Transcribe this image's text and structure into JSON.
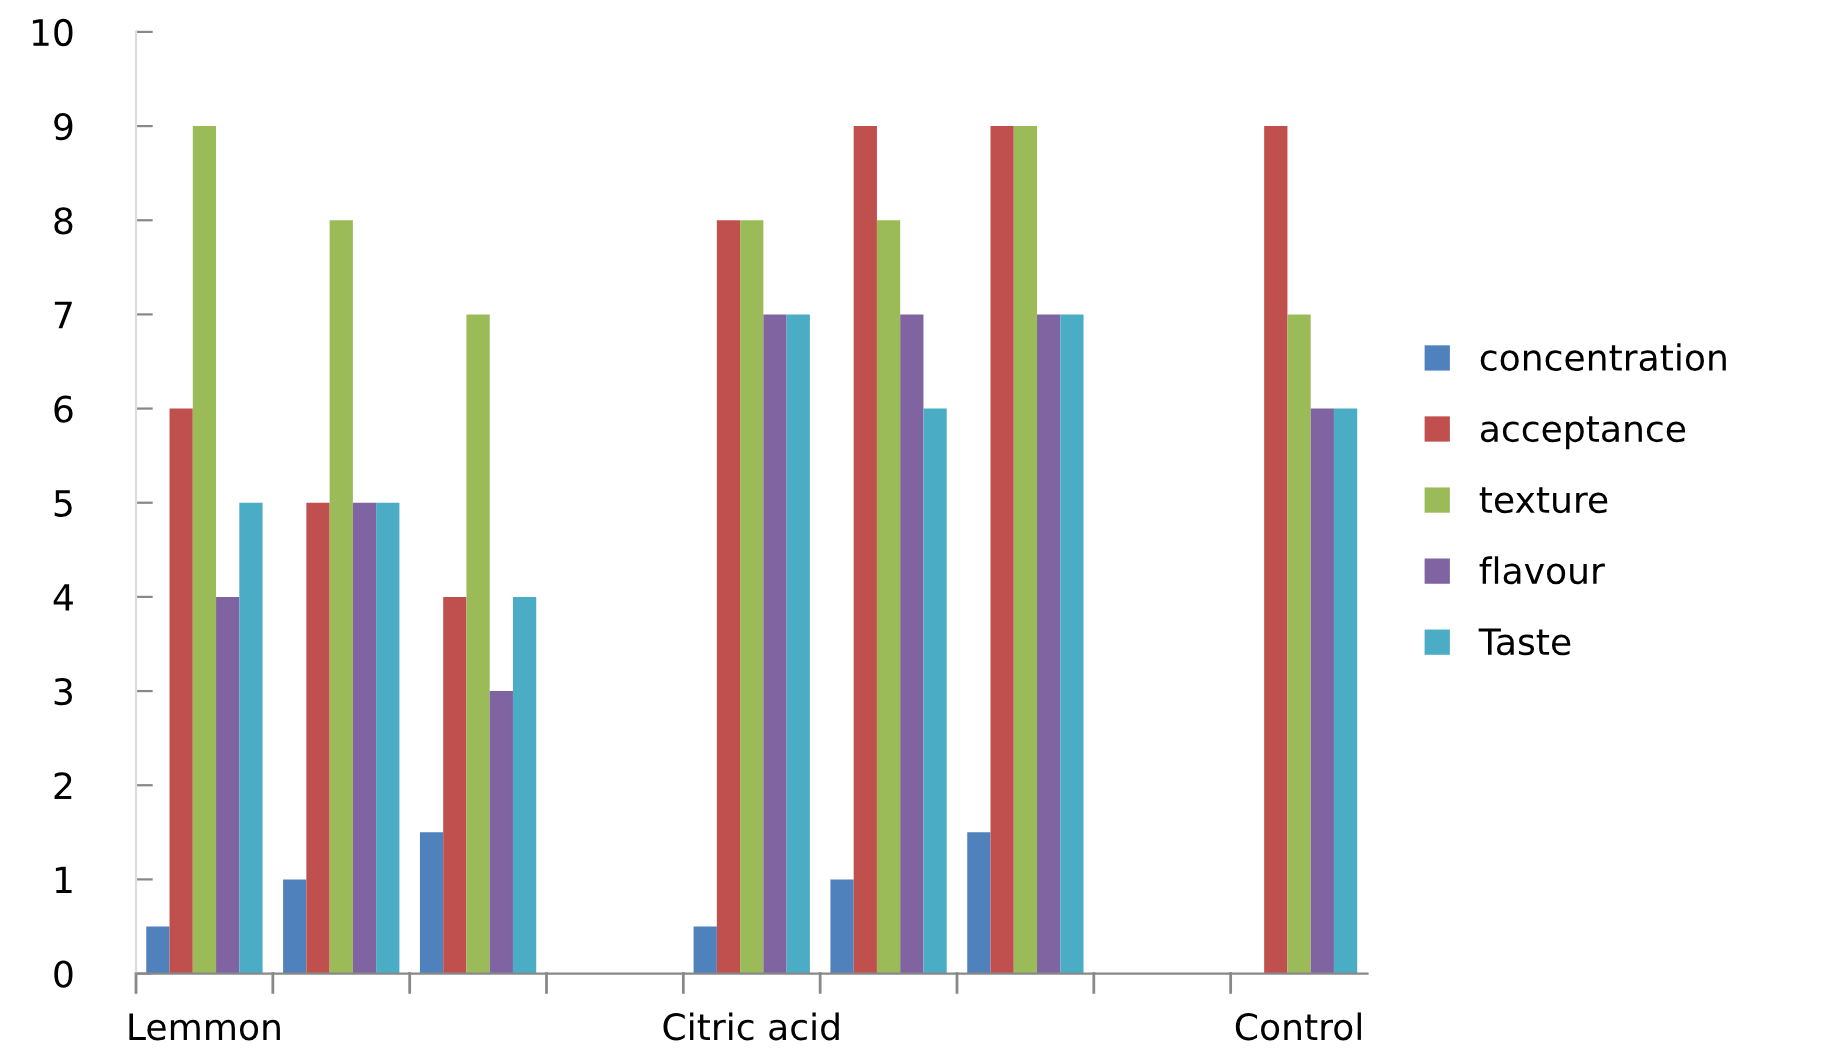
{
  "chart_data": {
    "type": "bar",
    "categories": [
      "Lemmon",
      null,
      null,
      null,
      "Citric acid",
      null,
      null,
      null,
      "Control"
    ],
    "series": [
      {
        "name": "concentration",
        "color": "#4f81bd",
        "values": [
          0.5,
          1,
          1.5,
          null,
          0.5,
          1,
          1.5,
          null,
          null
        ]
      },
      {
        "name": "acceptance",
        "color": "#c0504d",
        "values": [
          6,
          5,
          4,
          null,
          8,
          9,
          9,
          null,
          9
        ]
      },
      {
        "name": "texture",
        "color": "#9bbb59",
        "values": [
          9,
          8,
          7,
          null,
          8,
          8,
          9,
          null,
          7
        ]
      },
      {
        "name": "flavour",
        "color": "#8064a2",
        "values": [
          4,
          5,
          3,
          null,
          7,
          7,
          7,
          null,
          6
        ]
      },
      {
        "name": "Taste",
        "color": "#4bacc6",
        "values": [
          5,
          5,
          4,
          null,
          7,
          6,
          7,
          null,
          6
        ]
      }
    ],
    "ylim": [
      0,
      10
    ],
    "yticks": [
      0,
      1,
      2,
      3,
      4,
      5,
      6,
      7,
      8,
      9,
      10
    ],
    "grid": false,
    "legend": "right"
  }
}
